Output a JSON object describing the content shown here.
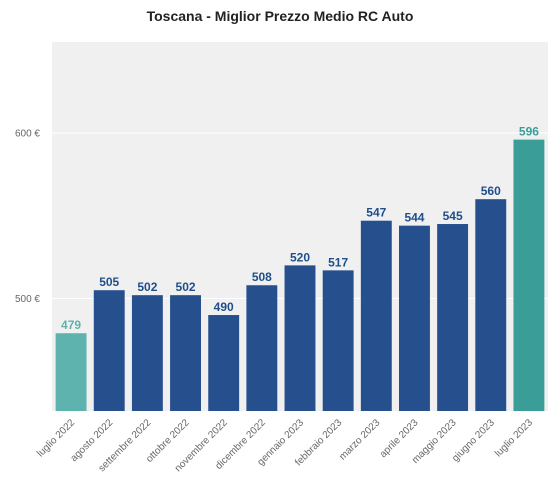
{
  "chart_data": {
    "type": "bar",
    "title": "Toscana - Miglior Prezzo Medio RC Auto",
    "xlabel": "",
    "ylabel": "",
    "categories": [
      "luglio 2022",
      "agosto 2022",
      "settembre 2022",
      "ottobre 2022",
      "novembre 2022",
      "dicembre 2022",
      "gennaio 2023",
      "febbraio 2023",
      "marzo 2023",
      "aprile 2023",
      "maggio 2023",
      "giugno 2023",
      "luglio 2023"
    ],
    "values": [
      479,
      505,
      502,
      502,
      490,
      508,
      520,
      517,
      547,
      544,
      545,
      560,
      596
    ],
    "ylim": [
      432,
      655
    ],
    "yticks": [
      500,
      600
    ],
    "ytick_labels": [
      "500 €",
      "600 €"
    ],
    "grid": true,
    "colors": {
      "background": "#f0f0f0",
      "grid": "#ffffff",
      "bar_default": "#264f8e",
      "bar_first": "#5fb3ae",
      "bar_last": "#3a9d98",
      "label_default": "#1f4e8c",
      "label_first": "#5fb3ae",
      "label_last": "#3a9d98",
      "tick_text": "#666666"
    }
  }
}
